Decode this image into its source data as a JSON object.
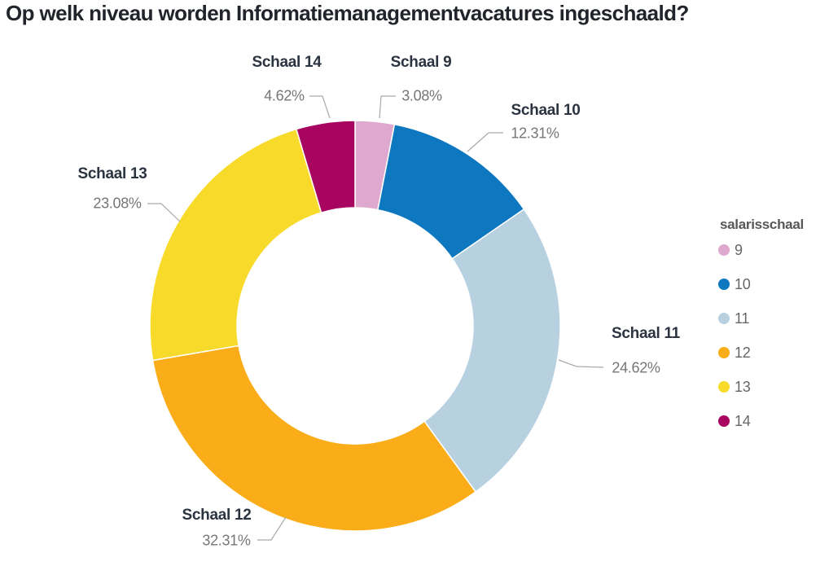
{
  "title": "Op welk niveau worden Informatiemanagementvacatures ingeschaald?",
  "legend": {
    "title": "salarisschaal"
  },
  "colors": {
    "leader_line": "#a9a9a9",
    "slice_label_name": "#2b3440",
    "slice_label_pct": "#767676",
    "title_text": "#21252b",
    "legend_title_text": "#575757",
    "legend_label_text": "#666666"
  },
  "chart_data": {
    "type": "pie",
    "subtype": "donut",
    "title": "Op welk niveau worden Informatiemanagementvacatures ingeschaald?",
    "legend_title": "salarisschaal",
    "legend_position": "right",
    "start_angle_deg": 0,
    "direction": "clockwise",
    "inner_radius_ratio": 0.575,
    "slices": [
      {
        "name": "Schaal 9",
        "legend_label": "9",
        "value": 3.08,
        "pct_label": "3.08%",
        "color": "#dfa8ce"
      },
      {
        "name": "Schaal 10",
        "legend_label": "10",
        "value": 12.31,
        "pct_label": "12.31%",
        "color": "#0d78bf"
      },
      {
        "name": "Schaal 11",
        "legend_label": "11",
        "value": 24.62,
        "pct_label": "24.62%",
        "color": "#b7d1e1"
      },
      {
        "name": "Schaal 12",
        "legend_label": "12",
        "value": 32.31,
        "pct_label": "32.31%",
        "color": "#faad18"
      },
      {
        "name": "Schaal 13",
        "legend_label": "13",
        "value": 23.08,
        "pct_label": "23.08%",
        "color": "#f8da2b"
      },
      {
        "name": "Schaal 14",
        "legend_label": "14",
        "value": 4.62,
        "pct_label": "4.62%",
        "color": "#a70560"
      }
    ]
  }
}
